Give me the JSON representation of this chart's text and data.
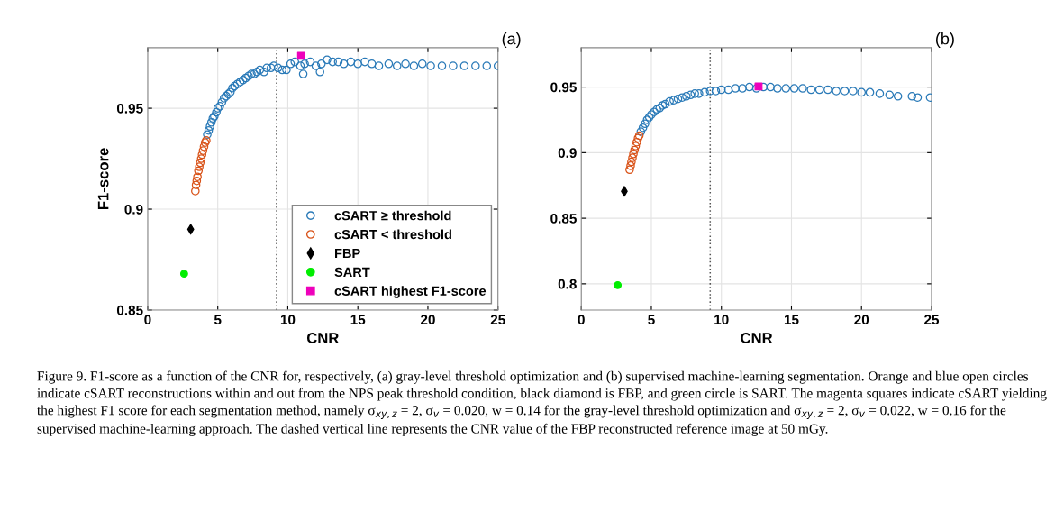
{
  "chart_data": [
    {
      "type": "scatter",
      "xlabel": "CNR",
      "ylabel": "F1-score",
      "xlim": [
        0,
        25
      ],
      "ylim": [
        0.85,
        0.98
      ],
      "xticks": [
        0,
        5,
        10,
        15,
        20,
        25
      ],
      "yticks": [
        0.85,
        0.9,
        0.95
      ],
      "grid": true,
      "legend": "bottom right",
      "ref_lines": [
        {
          "axis": "x",
          "value": 9.2,
          "color": "#555555",
          "line_style": "dotted"
        }
      ],
      "annotations": [
        "(a)",
        "Figure 9. F1-score as a function of the CNR for, respectively, (a) gray-level threshold optimization and (b) supervised machine-learning segmentation. Orange and blue open circles indicate cSART reconstructions within and out from the NPS peak threshold condition, black diamond is FBP, and green circle is SART. The magenta squares indicate cSART yielding the highest F1 score for each segmentation method, namely σ$_{xy,z}$ = 2, σ$_{v}$ = 0.020, w = 0.14 for the gray-level threshold optimization and σ$_{xy,z}$ = 2, σ$_{v}$ = 0.022, w = 0.16 for the supervised machine-learning approach. The dashed vertical line represents the CNR value of the FBP reconstructed reference image at 50 mGy."
      ],
      "series": [
        {
          "name": "cSART ≥ threshold",
          "color": "#2a7ab8",
          "marker": "circle",
          "x": [
            4.25,
            4.35,
            4.45,
            4.55,
            4.65,
            4.75,
            4.9,
            5.0,
            5.15,
            5.3,
            5.45,
            5.6,
            5.75,
            5.9,
            6.05,
            6.2,
            6.4,
            6.6,
            6.8,
            7.0,
            7.2,
            7.4,
            7.6,
            7.8,
            8.0,
            8.3,
            8.5,
            8.8,
            9.0,
            9.3,
            9.6,
            9.9,
            10.2,
            10.5,
            10.9,
            11.1,
            11.2,
            11.6,
            12.0,
            12.3,
            12.4,
            12.8,
            13.2,
            13.6,
            14.0,
            14.5,
            15.0,
            15.5,
            16.0,
            16.5,
            17.2,
            17.8,
            18.4,
            19.0,
            19.6,
            20.2,
            21.0,
            21.8,
            22.6,
            23.4,
            24.2,
            25.0
          ],
          "values": [
            0.937,
            0.939,
            0.941,
            0.943,
            0.945,
            0.946,
            0.948,
            0.95,
            0.951,
            0.953,
            0.955,
            0.956,
            0.957,
            0.958,
            0.96,
            0.961,
            0.962,
            0.963,
            0.964,
            0.965,
            0.966,
            0.967,
            0.967,
            0.968,
            0.969,
            0.968,
            0.97,
            0.97,
            0.971,
            0.97,
            0.969,
            0.969,
            0.972,
            0.973,
            0.971,
            0.967,
            0.972,
            0.973,
            0.971,
            0.968,
            0.972,
            0.974,
            0.973,
            0.973,
            0.972,
            0.973,
            0.972,
            0.973,
            0.972,
            0.971,
            0.972,
            0.971,
            0.972,
            0.971,
            0.972,
            0.971,
            0.971,
            0.971,
            0.971,
            0.971,
            0.971,
            0.971
          ]
        },
        {
          "name": "cSART < threshold",
          "color": "#d95319",
          "marker": "circle",
          "x": [
            3.4,
            3.45,
            3.5,
            3.55,
            3.62,
            3.68,
            3.75,
            3.82,
            3.88,
            3.95,
            4.02,
            4.1,
            4.18
          ],
          "values": [
            0.909,
            0.912,
            0.914,
            0.916,
            0.919,
            0.921,
            0.923,
            0.925,
            0.927,
            0.929,
            0.931,
            0.933,
            0.934
          ]
        },
        {
          "name": "FBP",
          "color": "#000000",
          "marker": "diamond",
          "x": [
            3.07
          ],
          "values": [
            0.89
          ]
        },
        {
          "name": "SART",
          "color": "#00ee00",
          "marker": "circle",
          "x": [
            2.6
          ],
          "values": [
            0.868
          ]
        },
        {
          "name": "cSART highest F1-score",
          "color": "#ee00bb",
          "marker": "square",
          "x": [
            10.95
          ],
          "values": [
            0.976
          ]
        }
      ]
    },
    {
      "type": "scatter",
      "xlabel": "CNR",
      "xlim": [
        0,
        25
      ],
      "ylim": [
        0.78,
        0.98
      ],
      "xticks": [
        0,
        5,
        10,
        15,
        20,
        25
      ],
      "yticks": [
        0.8,
        0.85,
        0.9,
        0.95
      ],
      "grid": true,
      "ref_lines": [
        {
          "axis": "x",
          "value": 9.2,
          "color": "#555555",
          "line_style": "dotted"
        }
      ],
      "annotations": [
        "(b)"
      ],
      "series": [
        {
          "color": "#2a7ab8",
          "marker": "circle",
          "x": [
            4.25,
            4.4,
            4.55,
            4.7,
            4.85,
            5.0,
            5.2,
            5.4,
            5.6,
            5.8,
            6.0,
            6.3,
            6.6,
            6.9,
            7.2,
            7.5,
            7.8,
            8.1,
            8.4,
            8.8,
            9.2,
            9.6,
            10.0,
            10.5,
            11.0,
            11.5,
            12.0,
            12.5,
            13.0,
            13.5,
            14.0,
            14.6,
            15.2,
            15.8,
            16.4,
            17.0,
            17.6,
            18.2,
            18.8,
            19.4,
            20.0,
            20.6,
            21.3,
            22.0,
            22.6,
            23.6,
            24.0,
            24.9
          ],
          "values": [
            0.916,
            0.919,
            0.922,
            0.925,
            0.927,
            0.929,
            0.931,
            0.933,
            0.934,
            0.936,
            0.937,
            0.939,
            0.94,
            0.941,
            0.942,
            0.943,
            0.944,
            0.945,
            0.945,
            0.946,
            0.947,
            0.947,
            0.948,
            0.948,
            0.949,
            0.949,
            0.95,
            0.949,
            0.95,
            0.95,
            0.949,
            0.949,
            0.949,
            0.949,
            0.948,
            0.948,
            0.948,
            0.947,
            0.947,
            0.947,
            0.946,
            0.946,
            0.945,
            0.944,
            0.943,
            0.943,
            0.942,
            0.942
          ]
        },
        {
          "color": "#d95319",
          "marker": "circle",
          "x": [
            3.45,
            3.52,
            3.58,
            3.65,
            3.72,
            3.8,
            3.88,
            3.96,
            4.05,
            4.14
          ],
          "values": [
            0.887,
            0.89,
            0.893,
            0.896,
            0.899,
            0.902,
            0.905,
            0.908,
            0.911,
            0.913
          ]
        },
        {
          "color": "#000000",
          "marker": "diamond",
          "x": [
            3.07
          ],
          "values": [
            0.8705
          ]
        },
        {
          "color": "#00ee00",
          "marker": "circle",
          "x": [
            2.6
          ],
          "values": [
            0.799
          ]
        },
        {
          "color": "#ee00bb",
          "marker": "square",
          "x": [
            12.65
          ],
          "values": [
            0.9505
          ]
        }
      ]
    }
  ]
}
